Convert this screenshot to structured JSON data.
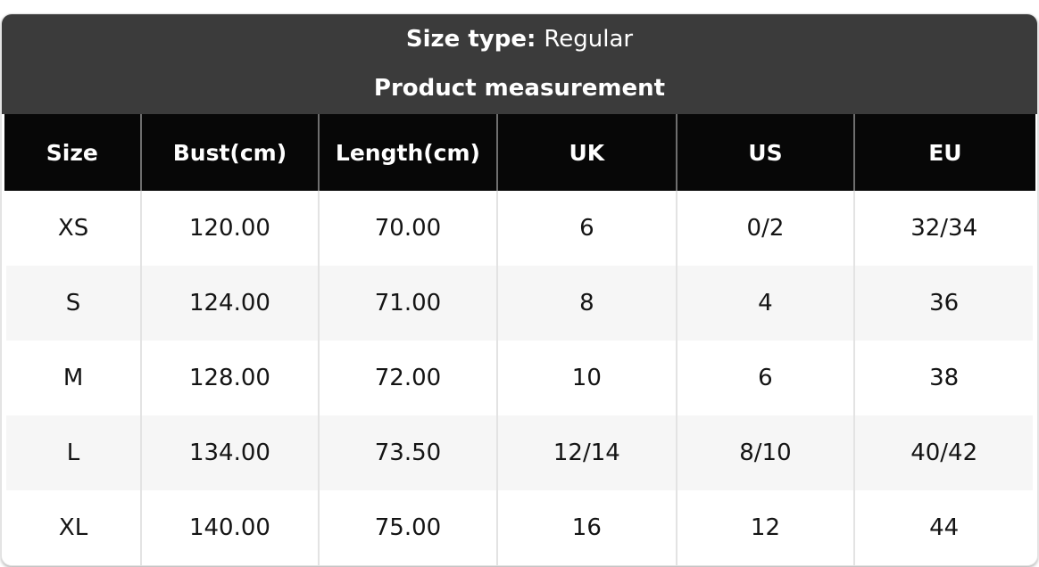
{
  "banner": {
    "size_type_label": "Size type:",
    "size_type_value": "Regular",
    "subtitle": "Product measurement"
  },
  "chart_data": {
    "type": "table",
    "title": "Product measurement",
    "size_type": "Regular",
    "columns": [
      "Size",
      "Bust(cm)",
      "Length(cm)",
      "UK",
      "US",
      "EU"
    ],
    "rows": [
      [
        "XS",
        "120.00",
        "70.00",
        "6",
        "0/2",
        "32/34"
      ],
      [
        "S",
        "124.00",
        "71.00",
        "8",
        "4",
        "36"
      ],
      [
        "M",
        "128.00",
        "72.00",
        "10",
        "6",
        "38"
      ],
      [
        "L",
        "134.00",
        "73.50",
        "12/14",
        "8/10",
        "40/42"
      ],
      [
        "XL",
        "140.00",
        "75.00",
        "16",
        "12",
        "44"
      ]
    ]
  },
  "colors": {
    "banner_bg": "#3b3b3b",
    "header_row_bg": "#070707",
    "alt_row_bg": "#f6f6f6",
    "body_divider": "#e3e3e3",
    "header_divider": "#6e6e6e",
    "text_light": "#ffffff",
    "text_dark": "#141414"
  }
}
